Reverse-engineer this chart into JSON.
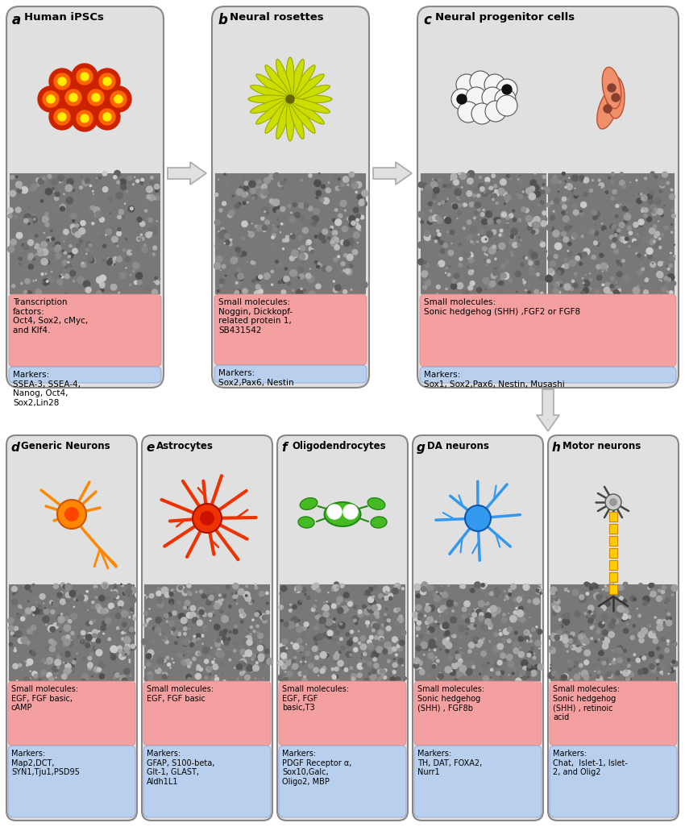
{
  "bg_color": "#ffffff",
  "panel_bg": "#e0e0e0",
  "pink_bg": "#f4a0a0",
  "blue_bg": "#b8d0ee",
  "arrow_color": "#cccccc",
  "top_panels": [
    {
      "label": "a",
      "title": "Human iPSCs",
      "small_molecules": "Transcription\nfactors:\nOct4, Sox2, cMyc,\nand Klf4.",
      "markers": "Markers:\nSSEA-3, SSEA-4,\nNanog, Oct4,\nSox2,Lin28"
    },
    {
      "label": "b",
      "title": "Neural rosettes",
      "small_molecules": "Small molecules:\nNoggin, Dickkopf-\nrelated protein 1,\nSB431542",
      "markers": "Markers:\nSox2,Pax6, Nestin"
    },
    {
      "label": "c",
      "title": "Neural progenitor cells",
      "small_molecules": "Small molecules:\nSonic hedgehog (SHH) ,FGF2 or FGF8",
      "markers": "Markers:\nSox1, Sox2,Pax6, Nestin, Musashi"
    }
  ],
  "bottom_panels": [
    {
      "label": "d",
      "title": "Generic Neurons",
      "small_molecules": "Small molecules:\nEGF, FGF basic,\ncAMP",
      "markers": "Markers:\nMap2,DCT,\nSYN1,Tju1,PSD95"
    },
    {
      "label": "e",
      "title": "Astrocytes",
      "small_molecules": "Small molecules:\nEGF, FGF basic",
      "markers": "Markers:\nGFAP, S100-beta,\nGlt-1, GLAST,\nAldh1L1"
    },
    {
      "label": "f",
      "title": "Oligodendrocytes",
      "small_molecules": "Small molecules:\nEGF, FGF\nbasic,T3",
      "markers": "Markers:\nPDGF Receptor α,\nSox10,Galc,\nOligo2, MBP"
    },
    {
      "label": "g",
      "title": "DA neurons",
      "small_molecules": "Small molecules:\nSonic hedgehog\n(SHH) , FGF8b",
      "markers": "Markers:\nTH, DAT, FOXA2,\nNurr1"
    },
    {
      "label": "h",
      "title": "Motor neurons",
      "small_molecules": "Small molecules:\nSonic hedgehog\n(SHH) , retinoic\nacid",
      "markers": "Markers:\nChat,  Islet-1, Islet-\n2, and Olig2"
    }
  ]
}
